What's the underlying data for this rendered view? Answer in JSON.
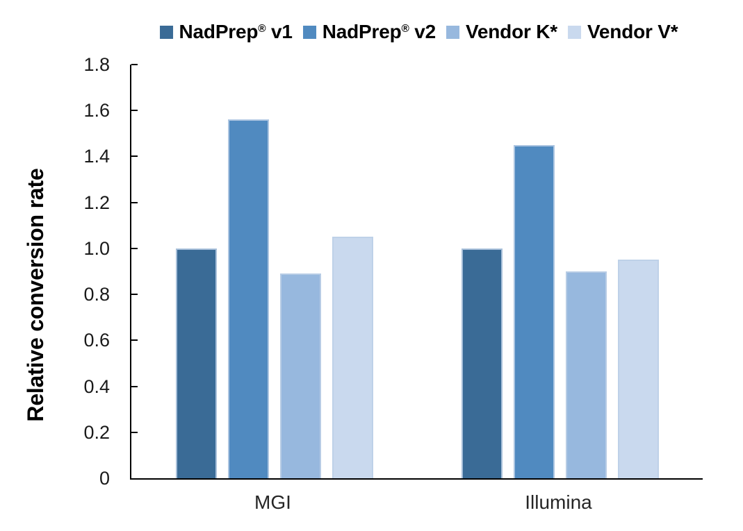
{
  "legend": {
    "items": [
      {
        "label": "NadPrep® v1",
        "pre": "NadPrep",
        "sup": "®",
        "post": " v1",
        "color": "#3A6B96"
      },
      {
        "label": "NadPrep® v2",
        "pre": "NadPrep",
        "sup": "®",
        "post": " v2",
        "color": "#508AC0"
      },
      {
        "label": "Vendor K*",
        "pre": "Vendor K*",
        "sup": "",
        "post": "",
        "color": "#97B8DE"
      },
      {
        "label": "Vendor V*",
        "pre": "Vendor V*",
        "sup": "",
        "post": "",
        "color": "#C9D9EE"
      }
    ]
  },
  "chart_data": {
    "type": "bar",
    "title": "",
    "xlabel": "",
    "ylabel": "Relative conversion rate",
    "categories": [
      "MGI",
      "Illumina"
    ],
    "series": [
      {
        "name": "NadPrep® v1",
        "color": "#3A6B96",
        "values": [
          1.0,
          1.0
        ]
      },
      {
        "name": "NadPrep® v2",
        "color": "#508AC0",
        "values": [
          1.56,
          1.45
        ]
      },
      {
        "name": "Vendor K*",
        "color": "#97B8DE",
        "values": [
          0.89,
          0.9
        ]
      },
      {
        "name": "Vendor V*",
        "color": "#C9D9EE",
        "values": [
          1.05,
          0.95
        ]
      }
    ],
    "ylim": [
      0,
      1.8
    ],
    "y_ticks": [
      {
        "v": 1.8,
        "label": "1.8"
      },
      {
        "v": 1.6,
        "label": "1.6"
      },
      {
        "v": 1.4,
        "label": "1.4"
      },
      {
        "v": 1.2,
        "label": "1.2"
      },
      {
        "v": 1.0,
        "label": "1.0"
      },
      {
        "v": 0.8,
        "label": "0.8"
      },
      {
        "v": 0.6,
        "label": "0.6"
      },
      {
        "v": 0.4,
        "label": "0.4"
      },
      {
        "v": 0.2,
        "label": "0.2"
      },
      {
        "v": 0.0,
        "label": "0"
      }
    ],
    "grid": false,
    "legend_position": "top"
  }
}
